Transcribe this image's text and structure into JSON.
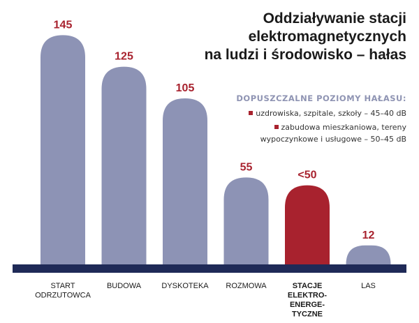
{
  "title": [
    "Oddziaływanie stacji",
    "elektromagnetycznych",
    "na ludzi i środowisko – hałas"
  ],
  "legend": {
    "heading": "DOPUSZCZALNE POZIOMY HAŁASU:",
    "items": [
      {
        "text_lines": [
          "uzdrowiska, szpitale, szkoły – 45–40 dB"
        ],
        "color": "#a8222e"
      },
      {
        "text_lines": [
          "zabudowa mieszkaniowa, tereny",
          "wypoczynkowe i usługowe – 50–45 dB"
        ],
        "color": "#a8222e"
      }
    ]
  },
  "colors": {
    "bar": "#8d93b5",
    "highlight_bar": "#a8222e",
    "value_label": "#a8222e",
    "baseline": "#1f2a57",
    "category_text": "#1a1a1a"
  },
  "chart_data": {
    "type": "bar",
    "unit": "dB",
    "categories": [
      {
        "lines": [
          "START",
          "ODRZUTOWCA"
        ],
        "bold": false
      },
      {
        "lines": [
          "BUDOWA"
        ],
        "bold": false
      },
      {
        "lines": [
          "DYSKOTEKA"
        ],
        "bold": false
      },
      {
        "lines": [
          "ROZMOWA"
        ],
        "bold": false
      },
      {
        "lines": [
          "STACJE",
          "ELEKTRO-",
          "ENERGE-",
          "TYCZNE"
        ],
        "bold": true
      },
      {
        "lines": [
          "LAS"
        ],
        "bold": false
      }
    ],
    "values": [
      145,
      125,
      105,
      55,
      50,
      12
    ],
    "value_labels": [
      "145",
      "125",
      "105",
      "55",
      "<50",
      "12"
    ],
    "highlight_index": 4,
    "ylim": [
      0,
      150
    ],
    "grid": false
  }
}
